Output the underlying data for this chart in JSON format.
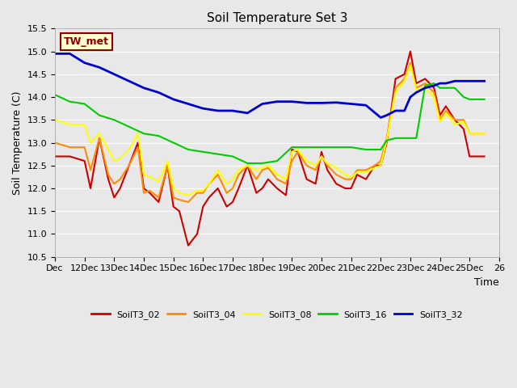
{
  "title": "Soil Temperature Set 3",
  "ylabel": "Soil Temperature (C)",
  "xlabel": "Time",
  "ylim": [
    10.5,
    15.5
  ],
  "xlim": [
    0,
    15
  ],
  "x_tick_positions": [
    0,
    1,
    2,
    3,
    4,
    5,
    6,
    7,
    8,
    9,
    10,
    11,
    12,
    13,
    14,
    15
  ],
  "x_tick_labels": [
    "Dec",
    "12Dec",
    "13Dec",
    "14Dec",
    "15Dec",
    "16Dec",
    "17Dec",
    "18Dec",
    "19Dec",
    "20Dec",
    "21Dec",
    "22Dec",
    "23Dec",
    "24Dec",
    "25Dec",
    "26"
  ],
  "annotation_text": "TW_met",
  "annotation_box_color": "#FFFFCC",
  "annotation_text_color": "#8B0000",
  "bg_color": "#E8E8E8",
  "series": {
    "SoilT3_02": {
      "color": "#CC0000",
      "linewidth": 1.5,
      "x": [
        0,
        0.5,
        1,
        1.2,
        1.5,
        1.8,
        2,
        2.2,
        2.5,
        2.8,
        3,
        3.2,
        3.5,
        3.8,
        4,
        4.2,
        4.5,
        4.8,
        5,
        5.2,
        5.5,
        5.8,
        6,
        6.2,
        6.5,
        6.8,
        7,
        7.2,
        7.5,
        7.8,
        8,
        8.2,
        8.5,
        8.8,
        9,
        9.2,
        9.5,
        9.8,
        10,
        10.2,
        10.5,
        10.8,
        11,
        11.2,
        11.5,
        11.8,
        12,
        12.2,
        12.5,
        12.8,
        13,
        13.2,
        13.5,
        13.8,
        14,
        14.5
      ],
      "y": [
        12.7,
        12.7,
        12.6,
        12.0,
        13.1,
        12.2,
        11.8,
        12.0,
        12.5,
        13.0,
        12.0,
        11.9,
        11.7,
        12.5,
        11.6,
        11.5,
        10.75,
        11.0,
        11.6,
        11.8,
        12.0,
        11.6,
        11.7,
        12.0,
        12.5,
        11.9,
        12.0,
        12.2,
        12.0,
        11.85,
        12.85,
        12.8,
        12.2,
        12.1,
        12.8,
        12.4,
        12.1,
        12.0,
        12.0,
        12.3,
        12.2,
        12.5,
        12.5,
        13.0,
        14.4,
        14.5,
        15.0,
        14.3,
        14.4,
        14.2,
        13.6,
        13.8,
        13.5,
        13.3,
        12.7,
        12.7
      ]
    },
    "SoilT3_04": {
      "color": "#FF8C00",
      "linewidth": 1.5,
      "x": [
        0,
        0.5,
        1,
        1.2,
        1.5,
        1.8,
        2,
        2.2,
        2.5,
        2.8,
        3,
        3.2,
        3.5,
        3.8,
        4,
        4.2,
        4.5,
        4.8,
        5,
        5.2,
        5.5,
        5.8,
        6,
        6.2,
        6.5,
        6.8,
        7,
        7.2,
        7.5,
        7.8,
        8,
        8.2,
        8.5,
        8.8,
        9,
        9.2,
        9.5,
        9.8,
        10,
        10.2,
        10.5,
        10.8,
        11,
        11.2,
        11.5,
        11.8,
        12,
        12.2,
        12.5,
        12.8,
        13,
        13.2,
        13.5,
        13.8,
        14,
        14.5
      ],
      "y": [
        13.0,
        12.9,
        12.9,
        12.4,
        13.1,
        12.3,
        12.1,
        12.2,
        12.5,
        12.9,
        11.9,
        11.95,
        11.8,
        12.5,
        11.8,
        11.75,
        11.7,
        11.9,
        11.9,
        12.1,
        12.3,
        11.9,
        12.0,
        12.3,
        12.5,
        12.2,
        12.4,
        12.45,
        12.2,
        12.1,
        12.6,
        12.8,
        12.5,
        12.4,
        12.7,
        12.5,
        12.3,
        12.2,
        12.2,
        12.4,
        12.4,
        12.5,
        12.6,
        13.1,
        14.2,
        14.4,
        14.75,
        14.2,
        14.3,
        14.1,
        13.5,
        13.7,
        13.5,
        13.5,
        13.2,
        13.2
      ]
    },
    "SoilT3_08": {
      "color": "#FFFF00",
      "linewidth": 1.5,
      "x": [
        0,
        0.5,
        1,
        1.2,
        1.5,
        1.8,
        2,
        2.2,
        2.5,
        2.8,
        3,
        3.2,
        3.5,
        3.8,
        4,
        4.2,
        4.5,
        4.8,
        5,
        5.2,
        5.5,
        5.8,
        6,
        6.2,
        6.5,
        6.8,
        7,
        7.2,
        7.5,
        7.8,
        8,
        8.2,
        8.5,
        8.8,
        9,
        9.2,
        9.5,
        9.8,
        10,
        10.2,
        10.5,
        10.8,
        11,
        11.2,
        11.5,
        11.8,
        12,
        12.2,
        12.5,
        12.8,
        13,
        13.2,
        13.5,
        13.8,
        14,
        14.5
      ],
      "y": [
        13.5,
        13.4,
        13.4,
        13.0,
        13.2,
        12.85,
        12.6,
        12.65,
        12.85,
        13.2,
        12.3,
        12.25,
        12.15,
        12.6,
        12.0,
        11.9,
        11.85,
        11.95,
        11.95,
        12.1,
        12.4,
        12.1,
        12.2,
        12.4,
        12.5,
        12.4,
        12.45,
        12.5,
        12.3,
        12.2,
        12.8,
        12.85,
        12.6,
        12.5,
        12.7,
        12.55,
        12.45,
        12.3,
        12.25,
        12.35,
        12.35,
        12.45,
        12.5,
        13.05,
        14.1,
        14.35,
        14.7,
        14.15,
        14.2,
        14.0,
        13.45,
        13.65,
        13.4,
        13.45,
        13.2,
        13.2
      ]
    },
    "SoilT3_16": {
      "color": "#00CC00",
      "linewidth": 1.5,
      "x": [
        0,
        0.5,
        1,
        1.5,
        2,
        2.5,
        3,
        3.5,
        4,
        4.5,
        5,
        5.5,
        6,
        6.5,
        7,
        7.5,
        8,
        8.5,
        9,
        9.5,
        10,
        10.5,
        11,
        11.2,
        11.5,
        11.8,
        12,
        12.2,
        12.5,
        12.8,
        13,
        13.2,
        13.5,
        13.8,
        14,
        14.5
      ],
      "y": [
        14.05,
        13.9,
        13.85,
        13.6,
        13.5,
        13.35,
        13.2,
        13.15,
        13.0,
        12.85,
        12.8,
        12.75,
        12.7,
        12.55,
        12.55,
        12.6,
        12.9,
        12.9,
        12.9,
        12.9,
        12.9,
        12.85,
        12.85,
        13.05,
        13.1,
        13.1,
        13.1,
        13.1,
        14.25,
        14.3,
        14.2,
        14.2,
        14.2,
        14.0,
        13.95,
        13.95
      ]
    },
    "SoilT3_32": {
      "color": "#0000CC",
      "linewidth": 2.0,
      "x": [
        0,
        0.5,
        1,
        1.5,
        2,
        2.5,
        3,
        3.5,
        4,
        4.5,
        5,
        5.5,
        6,
        6.5,
        7,
        7.5,
        8,
        8.5,
        9,
        9.5,
        10,
        10.5,
        11,
        11.2,
        11.5,
        11.8,
        12,
        12.2,
        12.5,
        12.8,
        13,
        13.2,
        13.5,
        13.8,
        14,
        14.5
      ],
      "y": [
        14.95,
        14.95,
        14.75,
        14.65,
        14.5,
        14.35,
        14.2,
        14.1,
        13.95,
        13.85,
        13.75,
        13.7,
        13.7,
        13.65,
        13.85,
        13.9,
        13.9,
        13.87,
        13.87,
        13.88,
        13.85,
        13.82,
        13.55,
        13.6,
        13.7,
        13.7,
        14.0,
        14.1,
        14.2,
        14.25,
        14.3,
        14.3,
        14.35,
        14.35,
        14.35,
        14.35
      ]
    }
  },
  "legend_entries": [
    "SoilT3_02",
    "SoilT3_04",
    "SoilT3_08",
    "SoilT3_16",
    "SoilT3_32"
  ],
  "legend_colors": [
    "#CC0000",
    "#FF8C00",
    "#FFFF00",
    "#00CC00",
    "#0000CC"
  ],
  "yticks": [
    10.5,
    11.0,
    11.5,
    12.0,
    12.5,
    13.0,
    13.5,
    14.0,
    14.5,
    15.0,
    15.5
  ]
}
